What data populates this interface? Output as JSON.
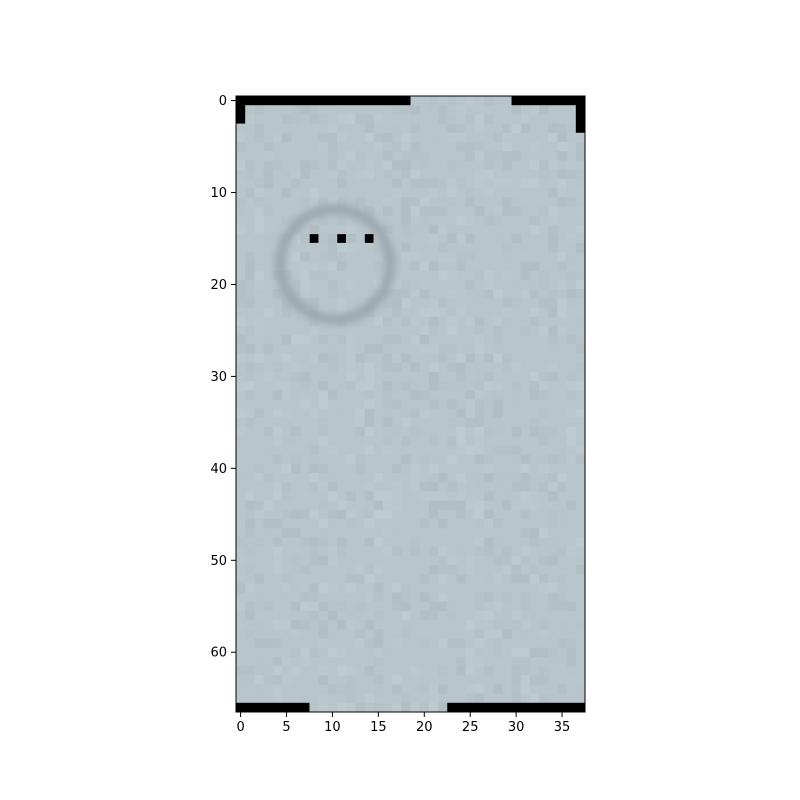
{
  "chart_data": {
    "type": "heatmap",
    "title": "",
    "xlabel": "",
    "ylabel": "",
    "image_grid": {
      "columns": 38,
      "rows": 67
    },
    "xlim": [
      -0.5,
      37.5
    ],
    "ylim": [
      66.5,
      -0.5
    ],
    "x_ticks": [
      0,
      5,
      10,
      15,
      20,
      25,
      30,
      35
    ],
    "x_tick_labels": [
      "0",
      "5",
      "10",
      "15",
      "20",
      "25",
      "30",
      "35"
    ],
    "y_ticks": [
      0,
      10,
      20,
      30,
      40,
      50,
      60
    ],
    "y_tick_labels": [
      "0",
      "10",
      "20",
      "30",
      "40",
      "50",
      "60"
    ],
    "grid": false,
    "legend": "none",
    "colors": {
      "background_gray": "#b8c6cc",
      "circle_gray": "#9aa6ad",
      "marker_black": "#000000",
      "axis": "#000000"
    },
    "markers": [
      {
        "x": 8,
        "y": 15
      },
      {
        "x": 11,
        "y": 15
      },
      {
        "x": 14,
        "y": 15
      }
    ],
    "circle": {
      "cx": 10.3,
      "cy": 17.8,
      "r": 6.0
    },
    "black_bars": [
      {
        "x0": -0.5,
        "x1": 18.5,
        "y0": -0.5,
        "y1": 0.5
      },
      {
        "x0": 29.5,
        "x1": 37.5,
        "y0": -0.5,
        "y1": 0.5
      },
      {
        "x0": -0.5,
        "x1": 0.5,
        "y0": -0.5,
        "y1": 2.5
      },
      {
        "x0": 36.5,
        "x1": 37.5,
        "y0": -0.5,
        "y1": 3.5
      },
      {
        "x0": -0.5,
        "x1": 7.5,
        "y0": 65.5,
        "y1": 66.5
      },
      {
        "x0": 22.5,
        "x1": 37.5,
        "y0": 65.5,
        "y1": 66.5
      }
    ]
  }
}
